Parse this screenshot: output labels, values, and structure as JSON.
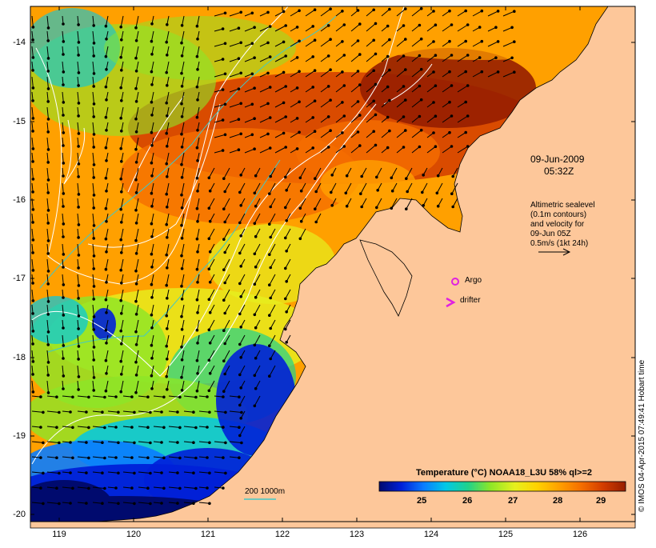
{
  "map": {
    "date_line": "09-Jun-2009",
    "time_line": "05:32Z",
    "legend_lines": [
      "Altimetric sealevel",
      "(0.1m contours)",
      "and velocity for",
      "09-Jun 05Z",
      "0.5m/s (1kt 24h)"
    ],
    "argo_label": "Argo",
    "drifter_label": "drifter",
    "isobath_label": "200  1000m",
    "colorbar": {
      "title": "Temperature (°C) NOAA18_L3U 58% ql>=2",
      "ticks": [
        "25",
        "26",
        "27",
        "28",
        "29"
      ],
      "colors": [
        "#000a6e",
        "#0020d8",
        "#0a7cff",
        "#00c8e6",
        "#20d28c",
        "#8ce628",
        "#e6f01e",
        "#ffd200",
        "#ffa000",
        "#f56e00",
        "#d23c00",
        "#961e00"
      ]
    },
    "y_ticks": [
      "-14",
      "-15",
      "-16",
      "-17",
      "-18",
      "-19",
      "-20"
    ],
    "x_ticks": [
      "119",
      "120",
      "121",
      "122",
      "123",
      "124",
      "125",
      "126"
    ],
    "credit": "© IMOS 04-Apr-2015 07:49:41 Hobart time",
    "land_color": "#fdc79a",
    "marker_color": "#e020e0"
  }
}
